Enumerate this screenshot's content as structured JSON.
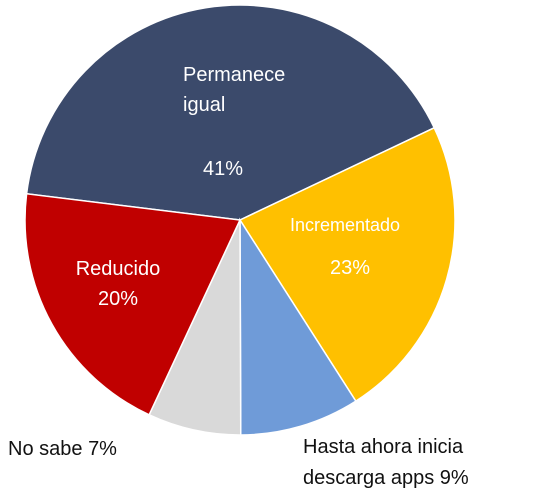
{
  "chart_data": {
    "type": "pie",
    "categories": [
      "Permanece igual",
      "Incrementado",
      "Hasta ahora inicia descarga apps",
      "No sabe",
      "Reducido"
    ],
    "values": [
      41,
      23,
      9,
      7,
      20
    ],
    "value_labels": [
      "41%",
      "23%",
      "9%",
      "7%",
      "20%"
    ],
    "colors": [
      "#3b4a6b",
      "#ffc000",
      "#6f9bd8",
      "#d9d9d9",
      "#c00000"
    ]
  }
}
